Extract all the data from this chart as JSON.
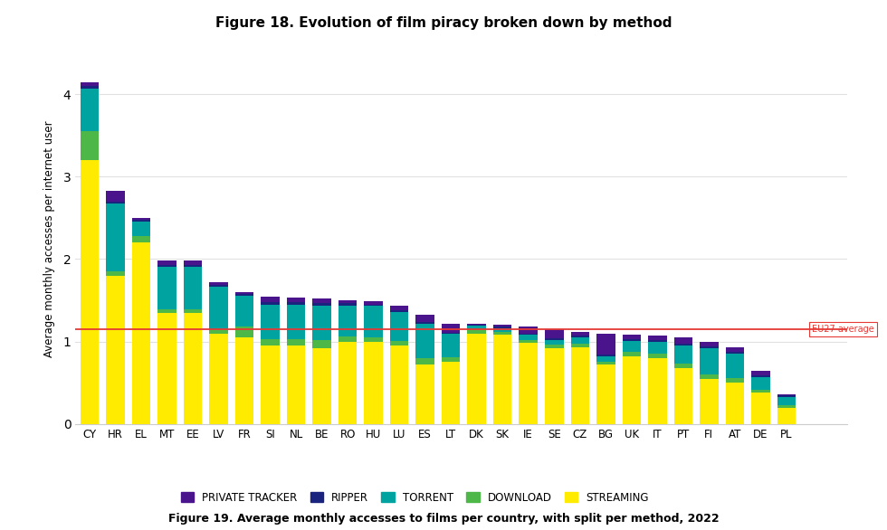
{
  "title": "Figure 18. Evolution of film piracy broken down by method",
  "subtitle": "Figure 19. Average monthly accesses to films per country, with split per method, 2022",
  "ylabel": "Average monthly accesses per internet user",
  "countries": [
    "CY",
    "HR",
    "EL",
    "MT",
    "EE",
    "LV",
    "FR",
    "SI",
    "NL",
    "BE",
    "RO",
    "HU",
    "LU",
    "ES",
    "LT",
    "DK",
    "SK",
    "IE",
    "SE",
    "CZ",
    "BG",
    "UK",
    "IT",
    "PT",
    "FI",
    "AT",
    "DE",
    "PL"
  ],
  "streaming": [
    3.2,
    1.8,
    2.2,
    1.35,
    1.35,
    1.1,
    1.05,
    0.95,
    0.95,
    0.92,
    1.0,
    1.0,
    0.95,
    0.72,
    0.75,
    1.1,
    1.08,
    0.98,
    0.92,
    0.93,
    0.72,
    0.82,
    0.8,
    0.68,
    0.55,
    0.5,
    0.38,
    0.2
  ],
  "download": [
    0.35,
    0.05,
    0.08,
    0.04,
    0.04,
    0.05,
    0.13,
    0.08,
    0.08,
    0.1,
    0.06,
    0.05,
    0.06,
    0.08,
    0.06,
    0.05,
    0.04,
    0.04,
    0.04,
    0.04,
    0.04,
    0.05,
    0.05,
    0.05,
    0.05,
    0.06,
    0.04,
    0.03
  ],
  "torrent": [
    0.52,
    0.82,
    0.18,
    0.52,
    0.52,
    0.52,
    0.38,
    0.42,
    0.42,
    0.42,
    0.38,
    0.38,
    0.35,
    0.42,
    0.28,
    0.04,
    0.04,
    0.06,
    0.06,
    0.08,
    0.06,
    0.14,
    0.15,
    0.22,
    0.32,
    0.29,
    0.15,
    0.1
  ],
  "ripper": [
    0.03,
    0.03,
    0.02,
    0.02,
    0.02,
    0.02,
    0.02,
    0.03,
    0.03,
    0.03,
    0.03,
    0.02,
    0.02,
    0.02,
    0.02,
    0.02,
    0.02,
    0.02,
    0.02,
    0.02,
    0.02,
    0.02,
    0.02,
    0.02,
    0.02,
    0.02,
    0.02,
    0.02
  ],
  "private_tracker": [
    0.05,
    0.13,
    0.02,
    0.05,
    0.05,
    0.03,
    0.02,
    0.07,
    0.05,
    0.05,
    0.03,
    0.04,
    0.05,
    0.09,
    0.11,
    0.01,
    0.02,
    0.08,
    0.11,
    0.05,
    0.26,
    0.05,
    0.05,
    0.08,
    0.06,
    0.06,
    0.06,
    0.01
  ],
  "eu27_avg": 1.15,
  "colors": {
    "streaming": "#FFEB00",
    "download": "#4DB848",
    "torrent": "#00A3A0",
    "ripper": "#1A237E",
    "private_tracker": "#4A148C"
  },
  "eu27_label": "EU27 average",
  "eu27_color": "#E53935",
  "background_color": "#FFFFFF",
  "grid_color": "#E0E0E0",
  "ylim": [
    0,
    4.5
  ],
  "yticks": [
    0,
    1,
    2,
    3,
    4
  ]
}
